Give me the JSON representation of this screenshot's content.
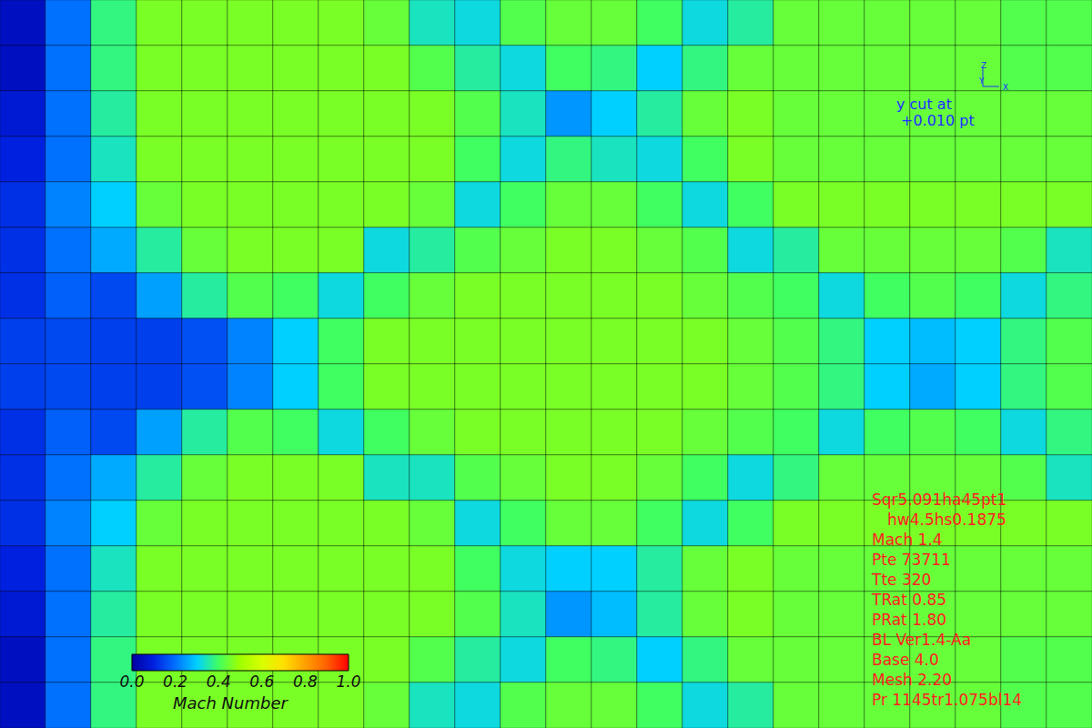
{
  "chart_data": {
    "type": "heatmap",
    "tick_labels": false,
    "cells": [
      [
        0.05,
        0.2,
        0.38,
        0.46,
        0.46,
        0.46,
        0.46,
        0.46,
        0.44,
        0.34,
        0.32,
        0.42,
        0.44,
        0.44,
        0.4,
        0.32,
        0.36,
        0.44,
        0.44,
        0.44,
        0.44,
        0.44,
        0.42,
        0.42
      ],
      [
        0.05,
        0.2,
        0.38,
        0.46,
        0.46,
        0.46,
        0.46,
        0.46,
        0.46,
        0.42,
        0.36,
        0.32,
        0.4,
        0.38,
        0.3,
        0.38,
        0.44,
        0.44,
        0.44,
        0.44,
        0.44,
        0.44,
        0.42,
        0.42
      ],
      [
        0.08,
        0.2,
        0.36,
        0.46,
        0.46,
        0.46,
        0.46,
        0.46,
        0.46,
        0.46,
        0.42,
        0.34,
        0.24,
        0.3,
        0.36,
        0.44,
        0.46,
        0.44,
        0.44,
        0.44,
        0.44,
        0.44,
        0.44,
        0.44
      ],
      [
        0.1,
        0.2,
        0.34,
        0.46,
        0.46,
        0.46,
        0.46,
        0.46,
        0.46,
        0.46,
        0.4,
        0.32,
        0.38,
        0.34,
        0.32,
        0.4,
        0.46,
        0.44,
        0.44,
        0.44,
        0.44,
        0.44,
        0.44,
        0.44
      ],
      [
        0.12,
        0.22,
        0.3,
        0.44,
        0.46,
        0.46,
        0.46,
        0.46,
        0.46,
        0.44,
        0.32,
        0.4,
        0.44,
        0.44,
        0.4,
        0.32,
        0.4,
        0.46,
        0.46,
        0.46,
        0.46,
        0.46,
        0.46,
        0.46
      ],
      [
        0.12,
        0.2,
        0.26,
        0.36,
        0.44,
        0.46,
        0.46,
        0.46,
        0.32,
        0.36,
        0.42,
        0.44,
        0.46,
        0.46,
        0.44,
        0.42,
        0.32,
        0.36,
        0.44,
        0.44,
        0.44,
        0.44,
        0.42,
        0.34
      ],
      [
        0.12,
        0.18,
        0.15,
        0.25,
        0.36,
        0.42,
        0.4,
        0.32,
        0.4,
        0.44,
        0.46,
        0.46,
        0.46,
        0.46,
        0.46,
        0.44,
        0.42,
        0.4,
        0.32,
        0.4,
        0.42,
        0.4,
        0.32,
        0.38
      ],
      [
        0.14,
        0.15,
        0.14,
        0.14,
        0.16,
        0.22,
        0.3,
        0.4,
        0.46,
        0.46,
        0.46,
        0.46,
        0.46,
        0.46,
        0.46,
        0.46,
        0.44,
        0.42,
        0.38,
        0.3,
        0.28,
        0.3,
        0.38,
        0.42
      ],
      [
        0.14,
        0.15,
        0.14,
        0.14,
        0.16,
        0.22,
        0.3,
        0.4,
        0.46,
        0.46,
        0.46,
        0.46,
        0.46,
        0.46,
        0.46,
        0.46,
        0.44,
        0.42,
        0.38,
        0.3,
        0.26,
        0.3,
        0.38,
        0.42
      ],
      [
        0.12,
        0.18,
        0.15,
        0.25,
        0.36,
        0.42,
        0.4,
        0.32,
        0.4,
        0.44,
        0.46,
        0.46,
        0.46,
        0.46,
        0.46,
        0.44,
        0.42,
        0.4,
        0.32,
        0.4,
        0.42,
        0.4,
        0.32,
        0.38
      ],
      [
        0.12,
        0.2,
        0.26,
        0.36,
        0.44,
        0.46,
        0.46,
        0.46,
        0.34,
        0.34,
        0.42,
        0.44,
        0.46,
        0.46,
        0.44,
        0.4,
        0.32,
        0.38,
        0.44,
        0.44,
        0.44,
        0.44,
        0.42,
        0.34
      ],
      [
        0.12,
        0.22,
        0.3,
        0.44,
        0.46,
        0.46,
        0.46,
        0.46,
        0.46,
        0.44,
        0.32,
        0.4,
        0.44,
        0.44,
        0.4,
        0.32,
        0.4,
        0.46,
        0.46,
        0.46,
        0.46,
        0.46,
        0.46,
        0.46
      ],
      [
        0.1,
        0.2,
        0.34,
        0.46,
        0.46,
        0.46,
        0.46,
        0.46,
        0.46,
        0.46,
        0.4,
        0.32,
        0.3,
        0.3,
        0.36,
        0.44,
        0.46,
        0.44,
        0.44,
        0.44,
        0.44,
        0.44,
        0.44,
        0.44
      ],
      [
        0.08,
        0.2,
        0.36,
        0.46,
        0.46,
        0.46,
        0.46,
        0.46,
        0.46,
        0.46,
        0.42,
        0.34,
        0.24,
        0.28,
        0.36,
        0.44,
        0.46,
        0.44,
        0.44,
        0.44,
        0.44,
        0.44,
        0.44,
        0.44
      ],
      [
        0.05,
        0.2,
        0.38,
        0.46,
        0.46,
        0.46,
        0.46,
        0.46,
        0.46,
        0.42,
        0.36,
        0.32,
        0.4,
        0.38,
        0.3,
        0.38,
        0.44,
        0.44,
        0.44,
        0.44,
        0.44,
        0.44,
        0.42,
        0.42
      ],
      [
        0.05,
        0.2,
        0.38,
        0.46,
        0.46,
        0.46,
        0.46,
        0.46,
        0.44,
        0.34,
        0.32,
        0.42,
        0.44,
        0.44,
        0.4,
        0.32,
        0.36,
        0.44,
        0.44,
        0.44,
        0.44,
        0.44,
        0.42,
        0.42
      ]
    ],
    "colorbar": {
      "label": "Mach Number",
      "range": [
        0,
        1
      ],
      "ticks": [
        {
          "value": 0,
          "label": "0.0"
        },
        {
          "value": 0.2,
          "label": "0.2"
        },
        {
          "value": 0.4,
          "label": "0.4"
        },
        {
          "value": 0.6,
          "label": "0.6"
        },
        {
          "value": 0.8,
          "label": "0.8"
        },
        {
          "value": 1,
          "label": "1.0"
        }
      ]
    },
    "annotations": {
      "triad": [
        "Z",
        "Y",
        "X"
      ],
      "cut": [
        "y cut at",
        "+0.010 pt"
      ],
      "run_info": [
        "Sqr5.091ha45pt1",
        "hw4.5hs0.1875",
        "Mach 1.4",
        "Pte 73711",
        "Tte 320",
        "TRat 0.85",
        "PRat 1.80",
        "BL Ver1.4-Aa",
        "Base 4.0",
        "Mesh 2.20",
        "Pr 1145tr1.075bl14"
      ]
    }
  }
}
